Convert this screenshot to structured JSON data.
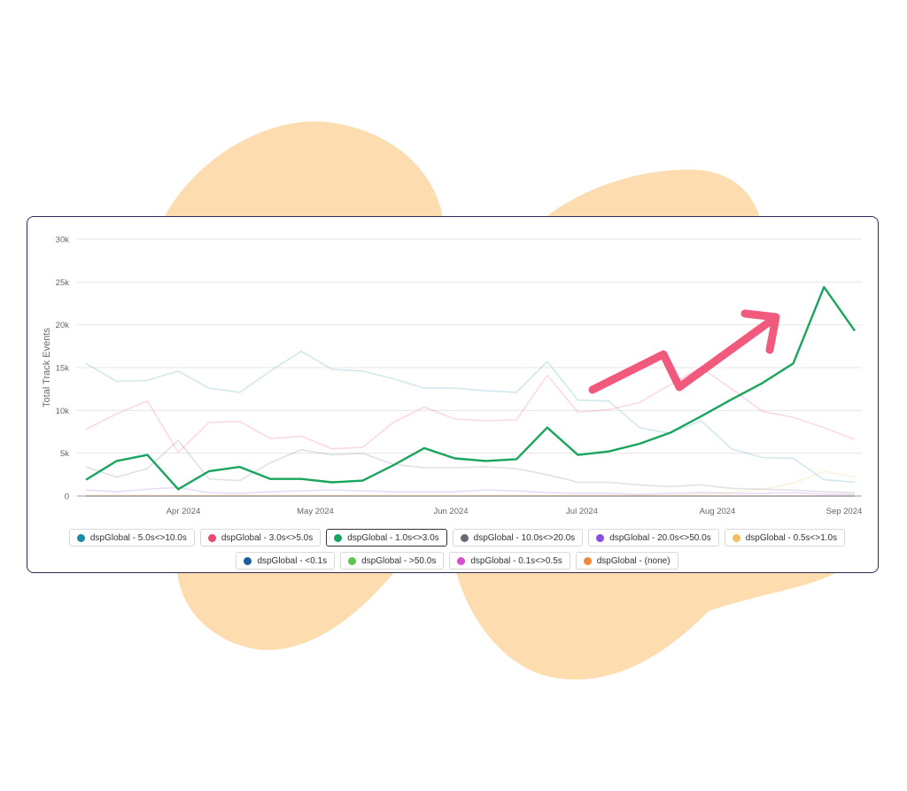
{
  "chart_data": {
    "type": "line",
    "ylabel": "Total Track Events",
    "y_ticks": [
      "0",
      "5k",
      "10k",
      "15k",
      "20k",
      "25k",
      "30k"
    ],
    "ylim": [
      0,
      30000
    ],
    "x_tick_labels": [
      "Apr 2024",
      "May 2024",
      "Jun 2024",
      "Jul 2024",
      "Aug 2024",
      "Sep 2024"
    ],
    "grid": "horizontal",
    "highlighted_series": "dspGlobal - 1.0s<>3.0s",
    "annotation": "hand-drawn pink zigzag arrow pointing up-right",
    "series": [
      {
        "name": "dspGlobal - 5.0s<>10.0s",
        "color": "#1a8ca5",
        "values": [
          15500,
          13400,
          13500,
          14600,
          12600,
          12100,
          14600,
          16900,
          14800,
          14600,
          13700,
          12600,
          12600,
          12300,
          12100,
          15700,
          11200,
          11100,
          8000,
          7300,
          8800,
          5500,
          4500,
          4400,
          1900,
          1600
        ]
      },
      {
        "name": "dspGlobal - 3.0s<>5.0s",
        "color": "#f0476f",
        "values": [
          7800,
          9600,
          11100,
          5100,
          8600,
          8700,
          6700,
          7000,
          5500,
          5700,
          8600,
          10400,
          9000,
          8800,
          8900,
          14100,
          9800,
          10100,
          10900,
          13000,
          15000,
          12500,
          9900,
          9200,
          8000,
          6600
        ]
      },
      {
        "name": "dspGlobal - 1.0s<>3.0s",
        "color": "#1aa55e",
        "values": [
          1900,
          4100,
          4800,
          800,
          2900,
          3400,
          2000,
          2000,
          1600,
          1800,
          3600,
          5600,
          4400,
          4100,
          4300,
          8000,
          4800,
          5200,
          6100,
          7400,
          9300,
          11300,
          13200,
          15500,
          24400,
          19300
        ]
      },
      {
        "name": "dspGlobal - 10.0s<>20.0s",
        "color": "#6b6b78",
        "values": [
          3400,
          2200,
          3200,
          6500,
          2000,
          1800,
          3900,
          5400,
          4800,
          5000,
          3700,
          3300,
          3300,
          3400,
          3200,
          2500,
          1600,
          1600,
          1300,
          1100,
          1300,
          900,
          800,
          700,
          500,
          400
        ]
      },
      {
        "name": "dspGlobal - 20.0s<>50.0s",
        "color": "#8a4fe0",
        "values": [
          700,
          500,
          800,
          1000,
          400,
          300,
          500,
          600,
          700,
          600,
          500,
          500,
          500,
          700,
          600,
          400,
          300,
          300,
          200,
          300,
          400,
          300,
          300,
          400,
          200,
          200
        ]
      },
      {
        "name": "dspGlobal - 0.5s<>1.0s",
        "color": "#f0c05a",
        "values": [
          100,
          100,
          100,
          100,
          100,
          100,
          100,
          100,
          100,
          100,
          100,
          100,
          100,
          100,
          100,
          100,
          100,
          100,
          100,
          100,
          200,
          400,
          800,
          1500,
          2900,
          2200
        ]
      },
      {
        "name": "dspGlobal - <0.1s",
        "color": "#1a5fa0",
        "values": [
          0,
          0,
          0,
          0,
          0,
          0,
          0,
          0,
          0,
          0,
          0,
          0,
          0,
          0,
          0,
          0,
          0,
          0,
          0,
          0,
          0,
          0,
          0,
          0,
          0,
          0
        ]
      },
      {
        "name": "dspGlobal - >50.0s",
        "color": "#5cc74a",
        "values": [
          0,
          0,
          0,
          0,
          0,
          0,
          0,
          0,
          0,
          0,
          0,
          0,
          0,
          0,
          0,
          0,
          0,
          0,
          0,
          0,
          0,
          0,
          0,
          0,
          0,
          0
        ]
      },
      {
        "name": "dspGlobal - 0.1s<>0.5s",
        "color": "#d94fd0",
        "values": [
          0,
          0,
          0,
          0,
          0,
          0,
          0,
          0,
          0,
          0,
          0,
          0,
          0,
          0,
          0,
          0,
          0,
          0,
          0,
          0,
          0,
          0,
          0,
          0,
          0,
          0
        ]
      },
      {
        "name": "dspGlobal - (none)",
        "color": "#f08a3a",
        "values": [
          0,
          0,
          0,
          0,
          0,
          0,
          0,
          0,
          0,
          0,
          0,
          0,
          0,
          0,
          0,
          0,
          0,
          0,
          0,
          0,
          0,
          0,
          0,
          0,
          0,
          0
        ]
      }
    ]
  },
  "colors": {
    "blob": "#fddcb0",
    "card_border": "#2d2a5a",
    "arrow": "#f0476f",
    "grid": "#e6e6e6"
  }
}
